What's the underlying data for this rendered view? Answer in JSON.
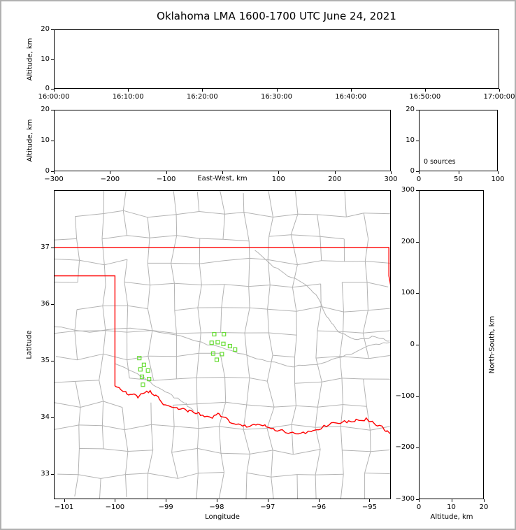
{
  "title": "Oklahoma LMA 1600-1700 UTC June 24, 2021",
  "colors": {
    "frame": "#b0b0b0",
    "axes": "#000000",
    "county_lines": "#b3b3b3",
    "river_lines": "#b3b3b3",
    "state_border": "#ff0000",
    "station_marker": "#66dd33"
  },
  "chart_data": [
    {
      "id": "time_altitude",
      "type": "scatter",
      "xlabel": "",
      "ylabel": "Altitude, km",
      "ylim": [
        0,
        20
      ],
      "x_tick_labels": [
        "16:00:00",
        "16:10:00",
        "16:20:00",
        "16:30:00",
        "16:40:00",
        "16:50:00",
        "17:00:00"
      ],
      "y_tick_labels": [
        "0",
        "10",
        "20"
      ],
      "points": []
    },
    {
      "id": "eastwest_altitude",
      "type": "scatter",
      "xlabel": "East-West, km",
      "ylabel": "Altitude, km",
      "xlim": [
        -300,
        300
      ],
      "ylim": [
        0,
        20
      ],
      "x_tick_labels": [
        "−300",
        "−200",
        "−100",
        "",
        "100",
        "200",
        "300"
      ],
      "y_tick_labels": [
        "0",
        "10",
        "20"
      ],
      "points": []
    },
    {
      "id": "altitude_source_histogram",
      "type": "histogram",
      "annotation": "0 sources",
      "xlim": [
        0,
        100
      ],
      "ylim": [
        0,
        20
      ],
      "x_tick_labels": [
        "0",
        "50",
        "100"
      ],
      "y_tick_labels": [
        "0",
        "10",
        "20"
      ],
      "values": []
    },
    {
      "id": "plan_view_map",
      "type": "map",
      "xlabel": "Longitude",
      "ylabel": "Latitude",
      "xlim": [
        -101.2,
        -94.58
      ],
      "ylim": [
        32.56,
        38.01
      ],
      "x_ticks": [
        -101,
        -100,
        -99,
        -98,
        -97,
        -96,
        -95
      ],
      "x_tick_labels": [
        "−101",
        "−100",
        "−99",
        "−98",
        "−97",
        "−96",
        "−95"
      ],
      "y_ticks": [
        33,
        34,
        35,
        36,
        37
      ],
      "y_tick_labels": [
        "33",
        "34",
        "35",
        "36",
        "37"
      ],
      "stations_lon_lat": [
        [
          -98.05,
          35.47
        ],
        [
          -97.86,
          35.47
        ],
        [
          -98.1,
          35.32
        ],
        [
          -97.98,
          35.33
        ],
        [
          -97.87,
          35.3
        ],
        [
          -97.74,
          35.26
        ],
        [
          -98.07,
          35.13
        ],
        [
          -97.9,
          35.12
        ],
        [
          -98.0,
          35.02
        ],
        [
          -97.64,
          35.2
        ],
        [
          -99.52,
          35.05
        ],
        [
          -99.43,
          34.93
        ],
        [
          -99.5,
          34.85
        ],
        [
          -99.35,
          34.83
        ],
        [
          -99.47,
          34.72
        ],
        [
          -99.33,
          34.68
        ],
        [
          -99.45,
          34.58
        ]
      ],
      "oklahoma_border": {
        "north_lat": 37.0,
        "panhandle_south_lat": 36.5,
        "panhandle_east_lon": -100.0,
        "east_border_lon": -94.618,
        "east_border_south_lat": 36.5,
        "east_exit_lat": 36.31,
        "red_river_lon_lat": [
          [
            -100.0,
            34.56
          ],
          [
            -99.8,
            34.44
          ],
          [
            -99.55,
            34.37
          ],
          [
            -99.3,
            34.47
          ],
          [
            -99.05,
            34.25
          ],
          [
            -98.75,
            34.16
          ],
          [
            -98.45,
            34.1
          ],
          [
            -98.15,
            33.99
          ],
          [
            -97.95,
            34.06
          ],
          [
            -97.7,
            33.92
          ],
          [
            -97.4,
            33.84
          ],
          [
            -97.1,
            33.88
          ],
          [
            -96.8,
            33.78
          ],
          [
            -96.45,
            33.72
          ],
          [
            -96.1,
            33.76
          ],
          [
            -95.75,
            33.9
          ],
          [
            -95.4,
            33.93
          ],
          [
            -95.05,
            33.97
          ],
          [
            -94.8,
            33.85
          ],
          [
            -94.58,
            33.7
          ]
        ]
      },
      "rivers_lon_lat": [
        [
          [
            -97.25,
            36.95
          ],
          [
            -96.95,
            36.7
          ],
          [
            -96.6,
            36.5
          ],
          [
            -96.25,
            36.35
          ],
          [
            -96.0,
            36.1
          ],
          [
            -95.85,
            35.8
          ],
          [
            -95.6,
            35.5
          ],
          [
            -95.3,
            35.38
          ],
          [
            -94.95,
            35.42
          ],
          [
            -94.58,
            35.35
          ]
        ],
        [
          [
            -101.2,
            35.6
          ],
          [
            -100.5,
            35.5
          ],
          [
            -99.7,
            35.58
          ],
          [
            -99.0,
            35.5
          ],
          [
            -98.3,
            35.32
          ],
          [
            -97.7,
            35.18
          ],
          [
            -97.1,
            35.02
          ],
          [
            -96.5,
            34.9
          ],
          [
            -95.95,
            34.95
          ],
          [
            -95.45,
            35.1
          ],
          [
            -94.95,
            35.28
          ],
          [
            -94.58,
            35.33
          ]
        ],
        [
          [
            -100.0,
            34.95
          ],
          [
            -99.55,
            34.78
          ],
          [
            -99.25,
            34.58
          ],
          [
            -98.95,
            34.42
          ],
          [
            -98.65,
            34.27
          ],
          [
            -98.45,
            34.12
          ]
        ]
      ]
    },
    {
      "id": "altitude_northsouth",
      "type": "scatter",
      "xlabel": "Altitude, km",
      "ylabel": "North-South, km",
      "xlim": [
        0,
        20
      ],
      "ylim": [
        -300,
        300
      ],
      "x_tick_labels": [
        "0",
        "10",
        "20"
      ],
      "y_tick_labels": [
        "−300",
        "−200",
        "−100",
        "0",
        "100",
        "200",
        "300"
      ],
      "points": []
    }
  ]
}
